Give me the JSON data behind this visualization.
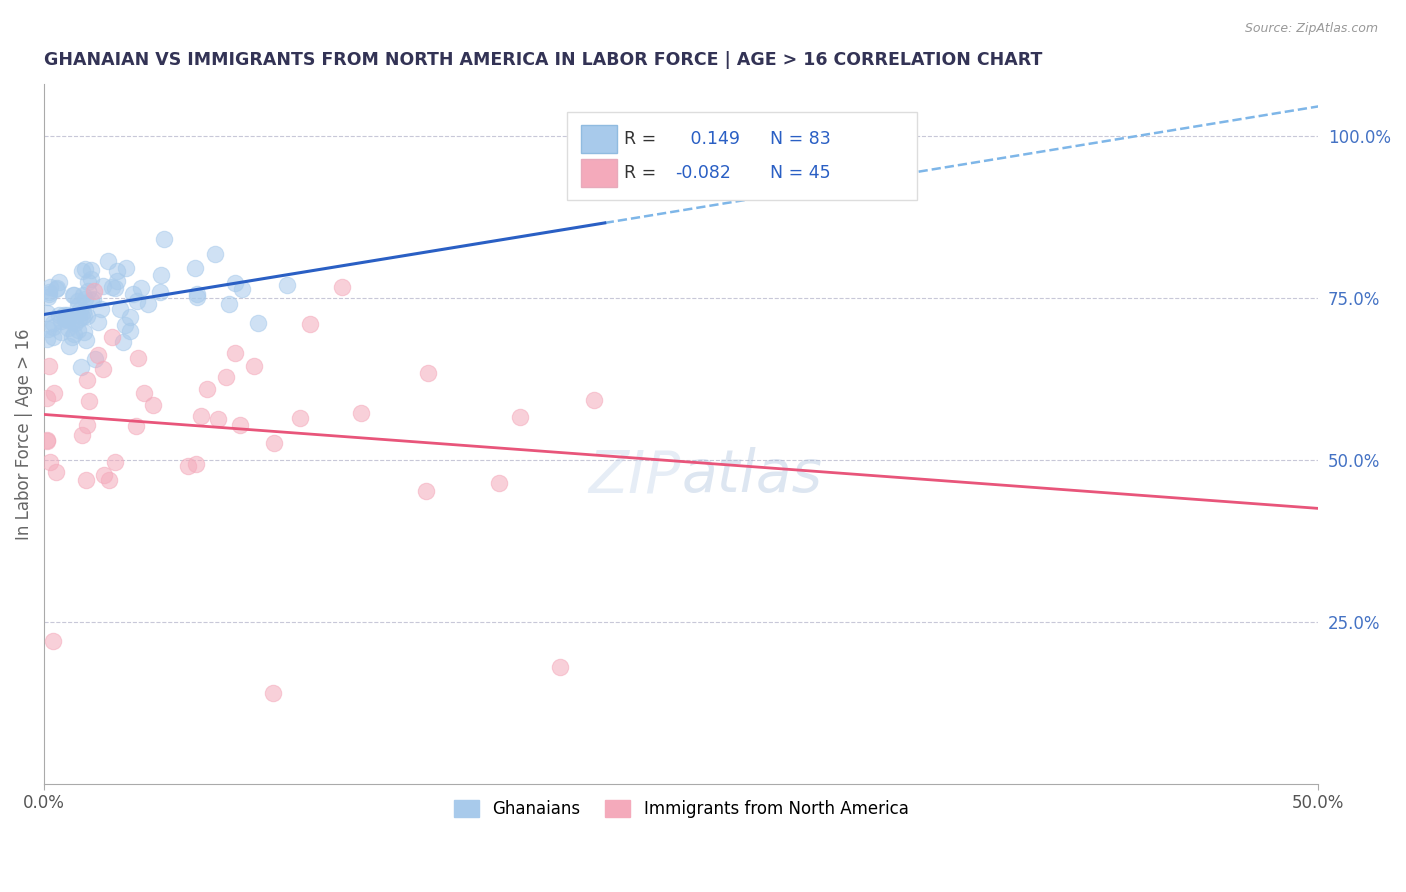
{
  "title": "GHANAIAN VS IMMIGRANTS FROM NORTH AMERICA IN LABOR FORCE | AGE > 16 CORRELATION CHART",
  "source": "Source: ZipAtlas.com",
  "ylabel": "In Labor Force | Age > 16",
  "xlim": [
    0.0,
    0.5
  ],
  "ylim": [
    0.0,
    1.08
  ],
  "blue_R": 0.149,
  "blue_N": 83,
  "pink_R": -0.082,
  "pink_N": 45,
  "blue_color": "#A8CAEB",
  "pink_color": "#F4AABB",
  "blue_line_color": "#2A5FC4",
  "pink_line_color": "#E8557A",
  "blue_dashed_color": "#7EB6E8",
  "legend_R_label_color": "#333333",
  "legend_value_color": "#2A5FC4",
  "background_color": "#FFFFFF",
  "grid_color": "#C8C8D8",
  "title_color": "#333355",
  "legend_label_blue": "Ghanaians",
  "legend_label_pink": "Immigrants from North America",
  "watermark_color": "#C8D8EC",
  "right_tick_color": "#4472C4",
  "blue_scatter_seed": 7,
  "pink_scatter_seed": 13
}
